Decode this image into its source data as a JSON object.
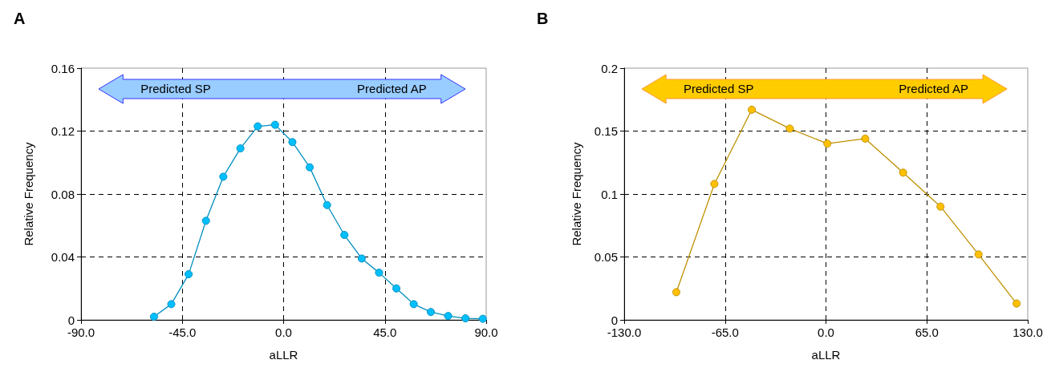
{
  "chart_data": [
    {
      "type": "line",
      "title": "A",
      "xlabel": "aLLR",
      "ylabel": "Relative Frequency",
      "annotations": [
        "Predicted SP",
        "Predicted AP"
      ],
      "x": [
        -57.6,
        -49.9,
        -42.2,
        -34.5,
        -26.8,
        -19.2,
        -11.5,
        -3.8,
        3.9,
        11.6,
        19.3,
        27.0,
        34.7,
        42.4,
        50.1,
        57.8,
        65.4,
        73.1,
        80.8,
        88.5
      ],
      "series": [
        {
          "color": "#00bfff",
          "values": [
            0.002,
            0.01,
            0.029,
            0.063,
            0.091,
            0.109,
            0.123,
            0.124,
            0.113,
            0.097,
            0.073,
            0.054,
            0.039,
            0.03,
            0.02,
            0.01,
            0.005,
            0.0025,
            0.001,
            0.0007
          ]
        }
      ],
      "xlim": [
        -90,
        90
      ],
      "xticks": [
        {
          "value": -90,
          "label": "-90.0"
        },
        {
          "value": -45,
          "label": "-45.0"
        },
        {
          "value": 0,
          "label": "0.0"
        },
        {
          "value": 45,
          "label": "45.0"
        },
        {
          "value": 90,
          "label": "90.0"
        }
      ],
      "ylim": [
        0,
        0.16
      ],
      "yticks": [
        0,
        0.04,
        0.08,
        0.12,
        0.16
      ],
      "grid": true,
      "marker": "circle",
      "line_style": "solid"
    },
    {
      "type": "line",
      "title": "B",
      "xlabel": "aLLR",
      "ylabel": "Relative Frequency",
      "annotations": [
        "Predicted SP",
        "Predicted AP"
      ],
      "x": [
        -96.4,
        -71.9,
        -47.8,
        -23.3,
        0.9,
        25.3,
        49.7,
        73.8,
        98.3,
        122.8
      ],
      "series": [
        {
          "color": "#ffc000",
          "values": [
            0.022,
            0.108,
            0.167,
            0.152,
            0.14,
            0.144,
            0.117,
            0.09,
            0.052,
            0.013
          ]
        }
      ],
      "xlim": [
        -130,
        130
      ],
      "xticks": [
        {
          "value": -130,
          "label": "-130.0"
        },
        {
          "value": -65,
          "label": "-65.0"
        },
        {
          "value": 0,
          "label": "0.0"
        },
        {
          "value": 65,
          "label": "65.0"
        },
        {
          "value": 130,
          "label": "130.0"
        }
      ],
      "ylim": [
        0,
        0.2
      ],
      "yticks": [
        0,
        0.05,
        0.1,
        0.15,
        0.2
      ],
      "grid": true,
      "marker": "circle",
      "line_style": "solid"
    }
  ]
}
